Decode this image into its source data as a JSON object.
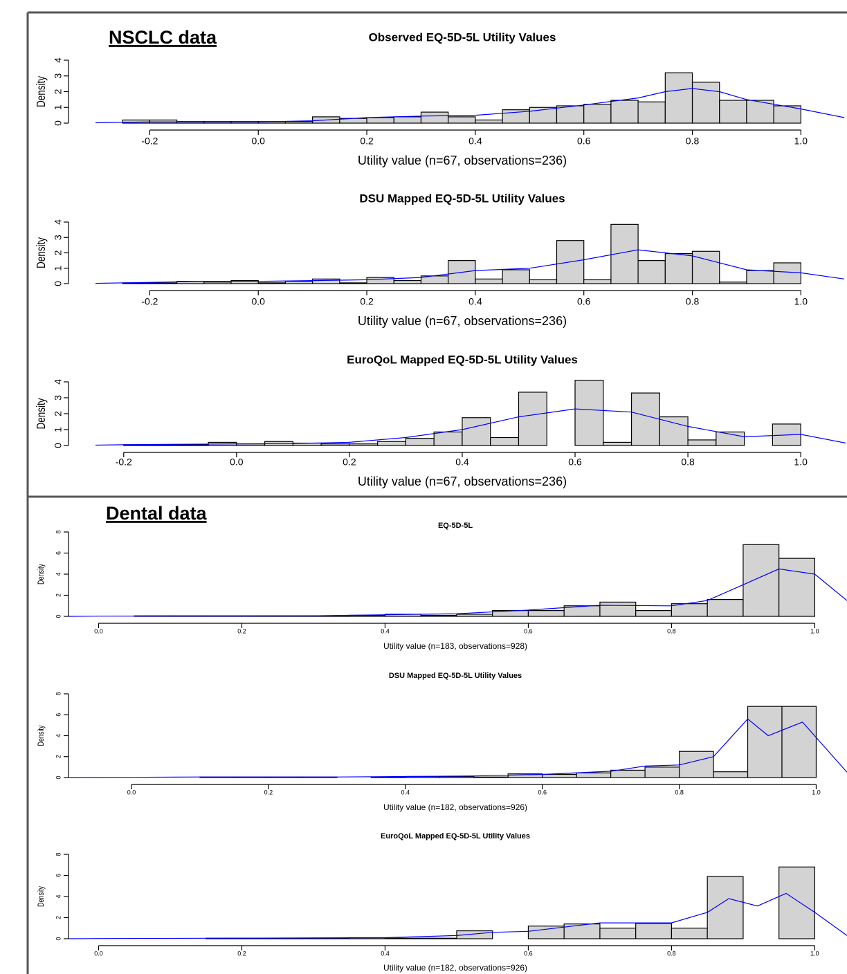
{
  "sections": [
    "NSCLC data",
    "Dental data"
  ],
  "chart_data": [
    {
      "type": "histogram",
      "title": "Observed EQ-5D-5L Utility Values",
      "x_label": "Utility value (n=67, observations=236)",
      "y_label": "Density",
      "bins": [
        -0.25,
        -0.2,
        -0.15,
        -0.1,
        -0.05,
        0,
        0.05,
        0.1,
        0.15,
        0.2,
        0.25,
        0.3,
        0.35,
        0.4,
        0.45,
        0.5,
        0.55,
        0.6,
        0.65,
        0.7,
        0.75,
        0.8,
        0.85,
        0.9,
        0.95,
        1.0
      ],
      "values": [
        0.2,
        0.2,
        0.1,
        0.1,
        0.1,
        0.1,
        0.1,
        0.4,
        0.3,
        0.35,
        0.4,
        0.7,
        0.4,
        0.2,
        0.85,
        1.0,
        1.1,
        1.2,
        1.45,
        1.35,
        3.2,
        2.6,
        1.45,
        1.45,
        1.1
      ],
      "color": "#d3d3d3",
      "curve_x": [
        -0.3,
        -0.2,
        -0.1,
        0,
        0.1,
        0.2,
        0.3,
        0.4,
        0.5,
        0.6,
        0.7,
        0.75,
        0.8,
        0.85,
        0.9,
        1.0,
        1.08
      ],
      "curve_values": [
        0.02,
        0.08,
        0.08,
        0.08,
        0.15,
        0.35,
        0.45,
        0.5,
        0.75,
        1.15,
        1.6,
        2.0,
        2.2,
        2.0,
        1.5,
        0.9,
        0.35
      ],
      "curve_color": "#0000ff",
      "xlim": [
        -0.3,
        1.085
      ],
      "ylim": [
        0,
        4
      ],
      "xticks": [
        -0.2,
        {
          "value": 0,
          "label": "0.0"
        },
        0.2,
        0.4,
        0.6,
        0.8,
        {
          "value": 1,
          "label": "1.0"
        }
      ],
      "yticks": [
        0,
        1,
        2,
        3,
        4
      ]
    },
    {
      "type": "histogram",
      "title": "DSU Mapped EQ-5D-5L Utility Values",
      "x_label": "Utility value (n=67, observations=236)",
      "y_label": "Density",
      "bins": [
        -0.25,
        -0.2,
        -0.15,
        -0.1,
        -0.05,
        0,
        0.05,
        0.1,
        0.15,
        0.2,
        0.25,
        0.3,
        0.35,
        0.4,
        0.45,
        0.5,
        0.55,
        0.6,
        0.65,
        0.7,
        0.75,
        0.8,
        0.85,
        0.9,
        0.95,
        1.0
      ],
      "values": [
        0.05,
        0.05,
        0.15,
        0.1,
        0.2,
        0.05,
        0.15,
        0.3,
        0.05,
        0.4,
        0.2,
        0.5,
        1.5,
        0.3,
        0.9,
        0.25,
        2.8,
        0.25,
        3.85,
        1.5,
        1.95,
        2.1,
        0.1,
        0.85,
        1.35
      ],
      "color": "#d3d3d3",
      "curve_x": [
        -0.3,
        -0.2,
        -0.1,
        0,
        0.1,
        0.2,
        0.3,
        0.4,
        0.5,
        0.6,
        0.7,
        0.8,
        0.9,
        1.0,
        1.08
      ],
      "curve_values": [
        0.02,
        0.08,
        0.15,
        0.15,
        0.2,
        0.25,
        0.4,
        0.85,
        1.0,
        1.55,
        2.2,
        1.8,
        0.9,
        0.7,
        0.3
      ],
      "curve_color": "#0000ff",
      "xlim": [
        -0.3,
        1.085
      ],
      "ylim": [
        0,
        4
      ],
      "xticks": [
        -0.2,
        {
          "value": 0,
          "label": "0.0"
        },
        0.2,
        0.4,
        0.6,
        0.8,
        {
          "value": 1,
          "label": "1.0"
        }
      ],
      "yticks": [
        0,
        1,
        2,
        3,
        4
      ]
    },
    {
      "type": "histogram",
      "title": "EuroQoL Mapped EQ-5D-5L Utility Values",
      "x_label": "Utility value (n=67, observations=236)",
      "y_label": "Density",
      "bins": [
        -0.2,
        -0.15,
        -0.1,
        -0.05,
        0,
        0.05,
        0.1,
        0.15,
        0.2,
        0.25,
        0.3,
        0.35,
        0.4,
        0.45,
        0.5,
        0.55,
        0.6,
        0.65,
        0.7,
        0.75,
        0.8,
        0.85,
        0.9,
        0.95,
        1.0
      ],
      "values": [
        0.05,
        0.05,
        0.05,
        0.2,
        0.1,
        0.25,
        0.15,
        0.1,
        0.1,
        0.25,
        0.45,
        0.85,
        1.75,
        0.5,
        3.35,
        0,
        4.1,
        0.2,
        3.3,
        1.8,
        0.35,
        0.85,
        0,
        1.35
      ],
      "color": "#d3d3d3",
      "curve_x": [
        -0.25,
        -0.2,
        -0.1,
        0,
        0.1,
        0.2,
        0.3,
        0.4,
        0.5,
        0.6,
        0.7,
        0.8,
        0.9,
        1.0,
        1.08
      ],
      "curve_values": [
        0.02,
        0.05,
        0.08,
        0.1,
        0.12,
        0.2,
        0.5,
        1.0,
        1.8,
        2.3,
        2.1,
        1.2,
        0.55,
        0.7,
        0.15
      ],
      "curve_color": "#0000ff",
      "xlim": [
        -0.25,
        1.082
      ],
      "ylim": [
        0,
        4
      ],
      "xticks": [
        -0.2,
        {
          "value": 0,
          "label": "0.0"
        },
        0.2,
        0.4,
        0.6,
        0.8,
        {
          "value": 1,
          "label": "1.0"
        }
      ],
      "yticks": [
        0,
        1,
        2,
        3,
        4
      ]
    },
    {
      "type": "histogram",
      "title": "EQ-5D-5L",
      "x_label": "Utility value (n=183, observations=928)",
      "y_label": "Density",
      "bins": [
        0,
        0.05,
        0.1,
        0.15,
        0.2,
        0.25,
        0.3,
        0.35,
        0.4,
        0.45,
        0.5,
        0.55,
        0.6,
        0.65,
        0.7,
        0.75,
        0.8,
        0.85,
        0.9,
        0.95,
        1.0
      ],
      "values": [
        0,
        0.05,
        0.05,
        0.05,
        0.05,
        0.05,
        0.05,
        0.1,
        0.2,
        0.1,
        0.2,
        0.55,
        0.55,
        1.0,
        1.35,
        0.55,
        1.2,
        1.6,
        6.8,
        5.5
      ],
      "color": "#d3d3d3",
      "curve_x": [
        -0.042,
        0,
        0.1,
        0.2,
        0.3,
        0.4,
        0.5,
        0.6,
        0.7,
        0.8,
        0.85,
        0.9,
        0.95,
        1.0,
        1.045
      ],
      "curve_values": [
        0,
        0.02,
        0.03,
        0.03,
        0.05,
        0.15,
        0.25,
        0.6,
        1.05,
        1.0,
        1.5,
        3.0,
        4.5,
        4.0,
        1.5
      ],
      "curve_color": "#0000ff",
      "xlim": [
        -0.042,
        1.045
      ],
      "ylim": [
        0,
        8
      ],
      "xticks": [
        {
          "value": 0,
          "label": "0.0"
        },
        0.2,
        0.4,
        0.6,
        0.8,
        {
          "value": 1,
          "label": "1.0"
        }
      ],
      "yticks": [
        0,
        2,
        4,
        6,
        8
      ]
    },
    {
      "type": "histogram",
      "title": "DSU Mapped EQ-5D-5L Utility Values",
      "x_label": "Utility value (n=182, observations=926)",
      "y_label": "Density",
      "bins": [
        0,
        0.05,
        0.1,
        0.15,
        0.2,
        0.25,
        0.3,
        0.35,
        0.4,
        0.45,
        0.5,
        0.55,
        0.6,
        0.65,
        0.7,
        0.75,
        0.8,
        0.85,
        0.9,
        0.95,
        1.0
      ],
      "values": [
        0,
        0,
        0.05,
        0.05,
        0.05,
        0.05,
        0,
        0.05,
        0.1,
        0.1,
        0.05,
        0.35,
        0.3,
        0.45,
        0.7,
        1.0,
        2.5,
        0.55,
        6.8,
        6.8
      ],
      "color": "#d3d3d3",
      "curve_x": [
        -0.092,
        0,
        0.1,
        0.3,
        0.4,
        0.5,
        0.6,
        0.7,
        0.75,
        0.8,
        0.85,
        0.9,
        0.93,
        0.98,
        1.045
      ],
      "curve_values": [
        0,
        0.02,
        0.05,
        0.05,
        0.1,
        0.15,
        0.3,
        0.6,
        1.1,
        1.2,
        2.0,
        5.6,
        4.0,
        5.3,
        0.5
      ],
      "curve_color": "#0000ff",
      "xlim": [
        -0.092,
        1.045
      ],
      "ylim": [
        0,
        8
      ],
      "xticks": [
        {
          "value": 0,
          "label": "0.0"
        },
        0.2,
        0.4,
        0.6,
        0.8,
        {
          "value": 1,
          "label": "1.0"
        }
      ],
      "yticks": [
        0,
        2,
        4,
        6,
        8
      ]
    },
    {
      "type": "histogram",
      "title": "EuroQoL Mapped EQ-5D-5L Utility Values",
      "x_label": "Utility value (n=182, observations=926)",
      "y_label": "Density",
      "bins": [
        0,
        0.05,
        0.1,
        0.15,
        0.2,
        0.25,
        0.3,
        0.35,
        0.4,
        0.45,
        0.5,
        0.55,
        0.6,
        0.65,
        0.7,
        0.75,
        0.8,
        0.85,
        0.9,
        0.95,
        1.0
      ],
      "values": [
        0,
        0,
        0,
        0.05,
        0.05,
        0.05,
        0.05,
        0.1,
        0.05,
        0.05,
        0.75,
        0,
        1.2,
        1.4,
        1.0,
        1.45,
        1.0,
        5.9,
        0,
        6.8
      ],
      "color": "#d3d3d3",
      "curve_x": [
        -0.042,
        0,
        0.2,
        0.4,
        0.5,
        0.55,
        0.6,
        0.7,
        0.8,
        0.85,
        0.88,
        0.92,
        0.96,
        1.0,
        1.045
      ],
      "curve_values": [
        0,
        0.02,
        0.05,
        0.1,
        0.3,
        0.6,
        0.7,
        1.5,
        1.5,
        2.5,
        3.8,
        3.1,
        4.3,
        2.5,
        0.3
      ],
      "curve_color": "#0000ff",
      "xlim": [
        -0.042,
        1.045
      ],
      "ylim": [
        0,
        8
      ],
      "xticks": [
        {
          "value": 0,
          "label": "0.0"
        },
        0.2,
        0.4,
        0.6,
        0.8,
        {
          "value": 1,
          "label": "1.0"
        }
      ],
      "yticks": [
        0,
        2,
        4,
        6,
        8
      ]
    }
  ]
}
